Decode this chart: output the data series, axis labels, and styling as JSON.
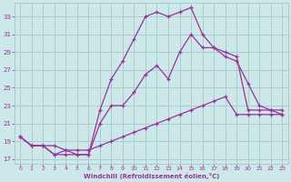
{
  "xlabel": "Windchill (Refroidissement éolien,°C)",
  "ylabel": "",
  "background_color": "#cce8e8",
  "grid_color": "#aacccc",
  "line_color": "#993399",
  "xlim": [
    -0.5,
    23.5
  ],
  "ylim": [
    16.5,
    34.5
  ],
  "xticks": [
    0,
    1,
    2,
    3,
    4,
    5,
    6,
    7,
    8,
    9,
    10,
    11,
    12,
    13,
    14,
    15,
    16,
    17,
    18,
    19,
    20,
    21,
    22,
    23
  ],
  "yticks": [
    17,
    19,
    21,
    23,
    25,
    27,
    29,
    31,
    33
  ],
  "curve_top_x": [
    0,
    1,
    2,
    3,
    4,
    5,
    6,
    7,
    8,
    9,
    10,
    11,
    12,
    13,
    14,
    15,
    16,
    17,
    18,
    19,
    20,
    21,
    22,
    23
  ],
  "curve_top_y": [
    19.5,
    18.5,
    18.5,
    17.5,
    17.5,
    17.5,
    17.5,
    22.5,
    26.0,
    28.0,
    30.5,
    33.0,
    33.5,
    33.0,
    33.5,
    34.0,
    31.0,
    29.5,
    29.0,
    28.5,
    22.5,
    22.5,
    22.5,
    22.5
  ],
  "curve_mid_x": [
    0,
    1,
    2,
    3,
    4,
    5,
    6,
    7,
    8,
    9,
    10,
    11,
    12,
    13,
    14,
    15,
    16,
    17,
    18,
    19,
    20,
    21,
    22,
    23
  ],
  "curve_mid_y": [
    19.5,
    18.5,
    18.5,
    17.5,
    18.0,
    17.5,
    17.5,
    21.0,
    23.0,
    23.0,
    24.5,
    26.5,
    27.5,
    26.0,
    29.0,
    31.0,
    29.5,
    29.5,
    28.5,
    28.0,
    25.5,
    23.0,
    22.5,
    22.0
  ],
  "curve_low_x": [
    0,
    1,
    2,
    3,
    4,
    5,
    6,
    7,
    8,
    9,
    10,
    11,
    12,
    13,
    14,
    15,
    16,
    17,
    18,
    19,
    20,
    21,
    22,
    23
  ],
  "curve_low_y": [
    19.5,
    18.5,
    18.5,
    18.5,
    18.0,
    18.0,
    18.0,
    18.5,
    19.0,
    19.5,
    20.0,
    20.5,
    21.0,
    21.5,
    22.0,
    22.5,
    23.0,
    23.5,
    24.0,
    22.0,
    22.0,
    22.0,
    22.0,
    22.0
  ]
}
